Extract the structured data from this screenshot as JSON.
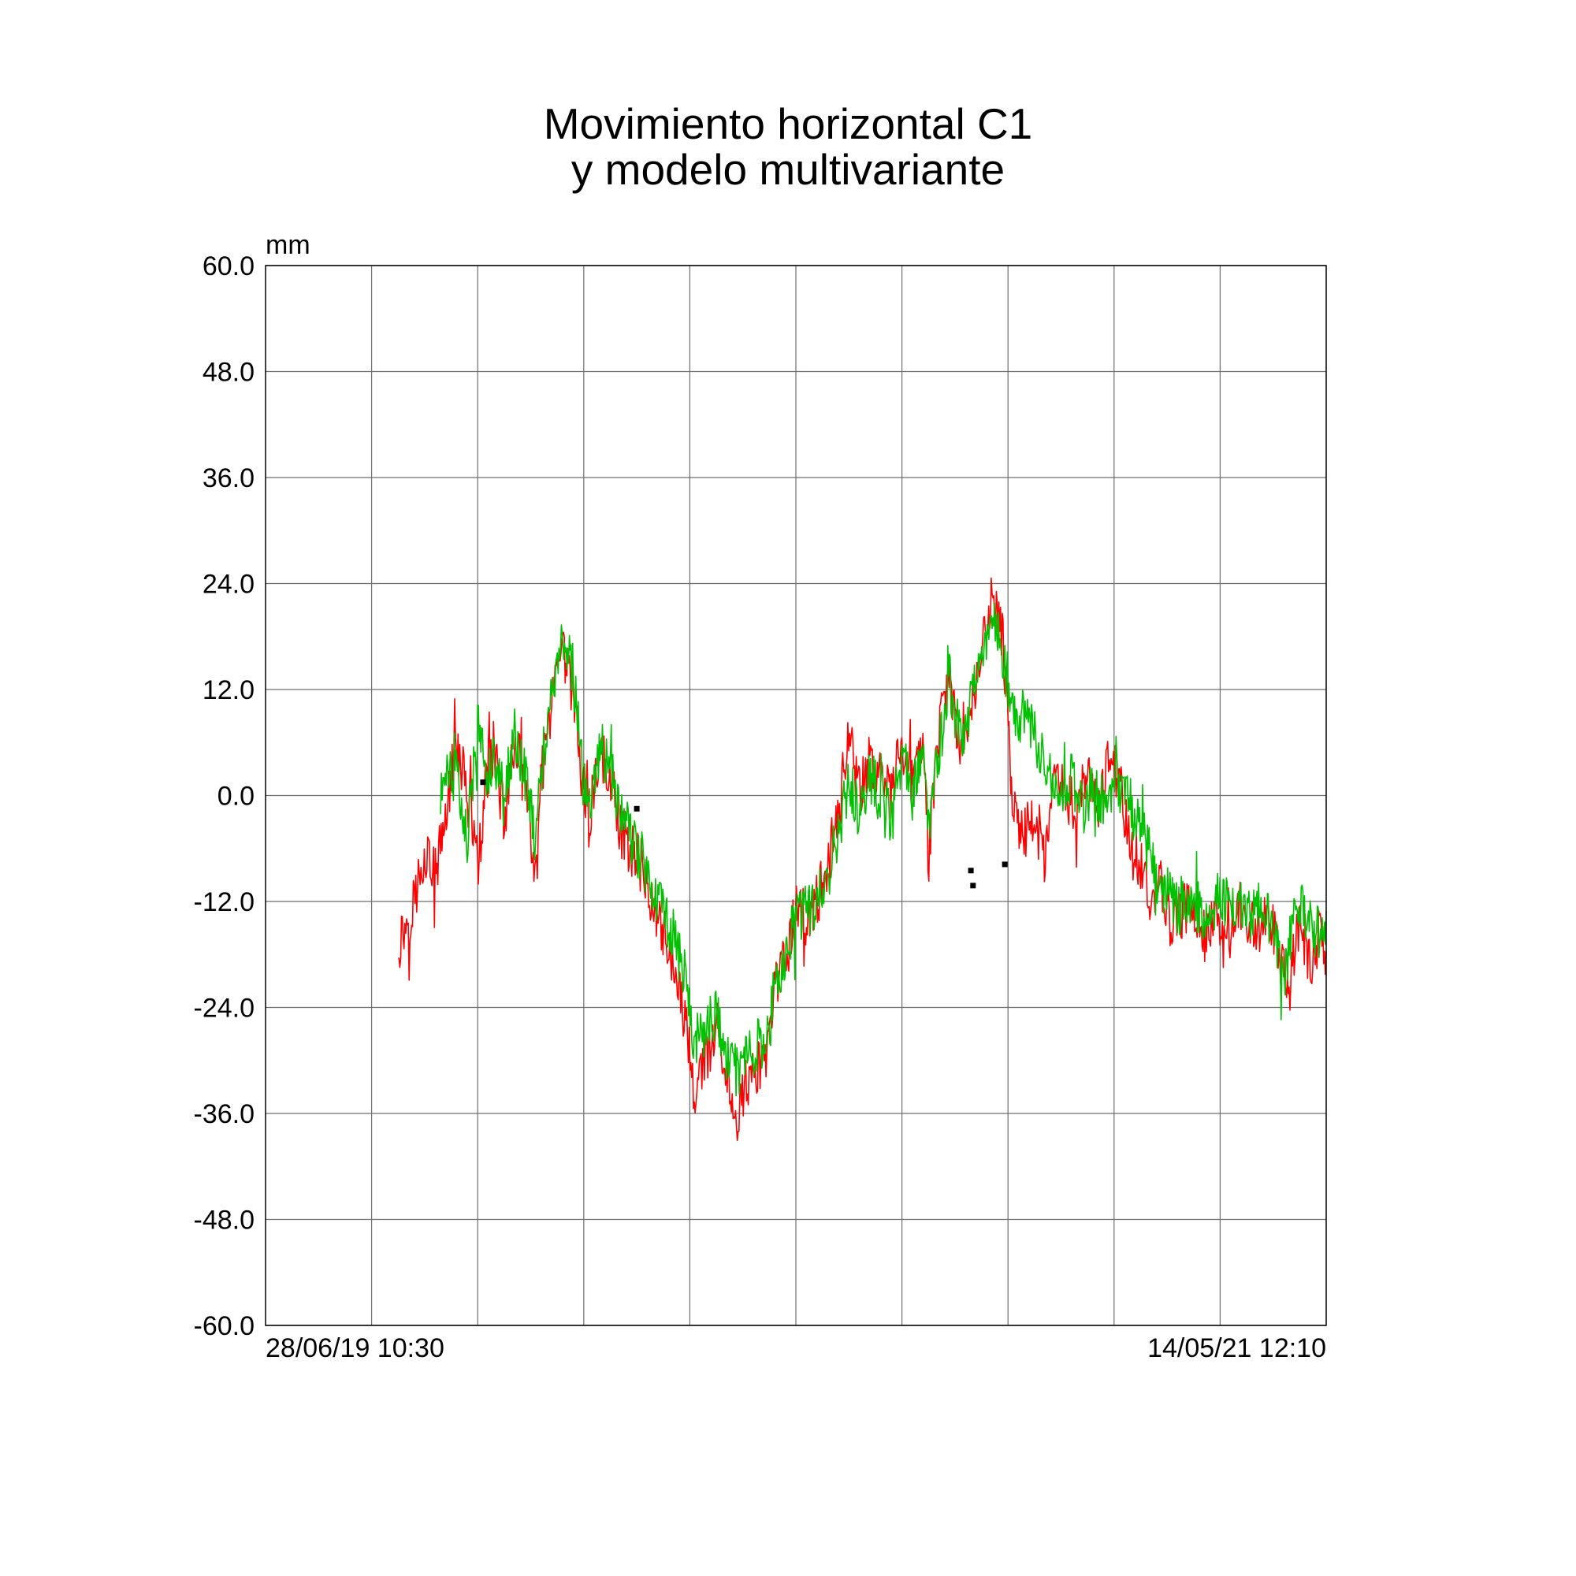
{
  "chart_data": {
    "type": "line",
    "title_lines": [
      "Movimiento horizontal C1",
      "y modelo multivariante"
    ],
    "ylabel": "mm",
    "ylim": [
      -60,
      60
    ],
    "yticks": [
      "60.0",
      "48.0",
      "36.0",
      "24.0",
      "12.0",
      "0.0",
      "-12.0",
      "-24.0",
      "-36.0",
      "-48.0",
      "-60.0"
    ],
    "ytick_values": [
      60,
      48,
      36,
      24,
      12,
      0,
      -12,
      -24,
      -36,
      -48,
      -60
    ],
    "x_start_label": "28/06/19 10:30",
    "x_end_label": "14/05/21 12:10",
    "x_grid_divisions": 10,
    "grid": true,
    "series": [
      {
        "color": "#ff0000",
        "x": [
          0.125,
          0.14,
          0.15,
          0.16,
          0.165,
          0.17,
          0.18,
          0.19,
          0.2,
          0.21,
          0.215,
          0.225,
          0.235,
          0.245,
          0.255,
          0.26,
          0.27,
          0.28,
          0.29,
          0.3,
          0.305,
          0.315,
          0.325,
          0.335,
          0.345,
          0.355,
          0.365,
          0.375,
          0.385,
          0.395,
          0.405,
          0.415,
          0.425,
          0.435,
          0.445,
          0.455,
          0.465,
          0.475,
          0.48,
          0.49,
          0.5,
          0.51,
          0.52,
          0.53,
          0.54,
          0.55,
          0.56,
          0.57,
          0.58,
          0.59,
          0.6,
          0.61,
          0.62,
          0.625,
          0.635,
          0.645,
          0.655,
          0.665,
          0.675,
          0.685,
          0.695,
          0.705,
          0.715,
          0.725,
          0.735,
          0.745,
          0.755,
          0.765,
          0.775,
          0.785,
          0.795,
          0.805,
          0.815,
          0.825,
          0.835,
          0.845,
          0.855,
          0.865,
          0.875,
          0.885,
          0.895,
          0.905,
          0.915,
          0.925,
          0.935,
          0.945,
          0.955,
          0.965,
          0.975,
          0.985,
          0.995,
          1.0
        ],
        "y": [
          -17,
          -12,
          -6,
          -9,
          -6,
          -2,
          6,
          1,
          -8,
          3,
          6,
          -3,
          7,
          0,
          -10,
          2,
          10,
          16,
          12,
          0,
          -3,
          5,
          2,
          -4,
          -6,
          -8,
          -12,
          -15,
          -20,
          -25,
          -34,
          -30,
          -26,
          -32,
          -36,
          -32,
          -31,
          -29,
          -22,
          -19,
          -13,
          -14,
          -12,
          -8,
          -2,
          7,
          0,
          4,
          2,
          0,
          6,
          1,
          8,
          -7,
          7,
          14,
          4,
          10,
          16,
          22,
          18,
          -2,
          -4,
          -3,
          -8,
          3,
          0,
          -1,
          2,
          -2,
          5,
          2,
          -6,
          -8,
          -12,
          -10,
          -15,
          -13,
          -12,
          -16,
          -14,
          -18,
          -12,
          -14,
          -16,
          -13,
          -18,
          -22,
          -14,
          -19,
          -15,
          -20
        ]
      },
      {
        "color": "#00c000",
        "x": [
          0.165,
          0.17,
          0.18,
          0.19,
          0.2,
          0.21,
          0.215,
          0.225,
          0.235,
          0.245,
          0.255,
          0.26,
          0.27,
          0.28,
          0.29,
          0.3,
          0.305,
          0.315,
          0.325,
          0.335,
          0.345,
          0.355,
          0.365,
          0.375,
          0.385,
          0.395,
          0.405,
          0.415,
          0.425,
          0.435,
          0.445,
          0.455,
          0.465,
          0.475,
          0.48,
          0.49,
          0.5,
          0.51,
          0.52,
          0.53,
          0.54,
          0.55,
          0.56,
          0.57,
          0.58,
          0.59,
          0.6,
          0.61,
          0.62,
          0.625,
          0.635,
          0.645,
          0.655,
          0.665,
          0.675,
          0.685,
          0.695,
          0.705,
          0.72,
          0.74,
          0.75,
          0.76,
          0.77,
          0.78,
          0.79,
          0.8,
          0.81,
          0.82,
          0.83,
          0.84,
          0.85,
          0.86,
          0.87,
          0.88,
          0.89,
          0.9,
          0.91,
          0.92,
          0.93,
          0.94,
          0.95,
          0.96,
          0.97,
          0.98,
          0.99,
          1.0
        ],
        "y": [
          -1,
          4,
          2,
          -5,
          8,
          2,
          5,
          0,
          7,
          2,
          -5,
          3,
          12,
          17,
          14,
          1,
          -2,
          6,
          3,
          -2,
          -5,
          -7,
          -10,
          -13,
          -16,
          -20,
          -28,
          -27,
          -24,
          -30,
          -31,
          -29,
          -28,
          -27,
          -21,
          -18,
          -14,
          -13,
          -12,
          -9,
          -4,
          2,
          -3,
          2,
          0,
          -3,
          5,
          0,
          6,
          -3,
          5,
          13,
          6,
          10,
          17,
          20,
          16,
          10,
          8,
          3,
          0,
          2,
          -2,
          1,
          -1,
          2,
          0,
          -2,
          -5,
          -10,
          -11,
          -13,
          -11,
          -13,
          -14,
          -11,
          -13,
          -12,
          -14,
          -12,
          -15,
          -22,
          -14,
          -13,
          -16,
          -14
        ]
      }
    ],
    "markers": [
      {
        "x": 0.205,
        "y": 1.5
      },
      {
        "x": 0.35,
        "y": -1.5
      },
      {
        "x": 0.665,
        "y": -8.5
      },
      {
        "x": 0.667,
        "y": -10.2
      },
      {
        "x": 0.697,
        "y": -7.8
      }
    ]
  }
}
